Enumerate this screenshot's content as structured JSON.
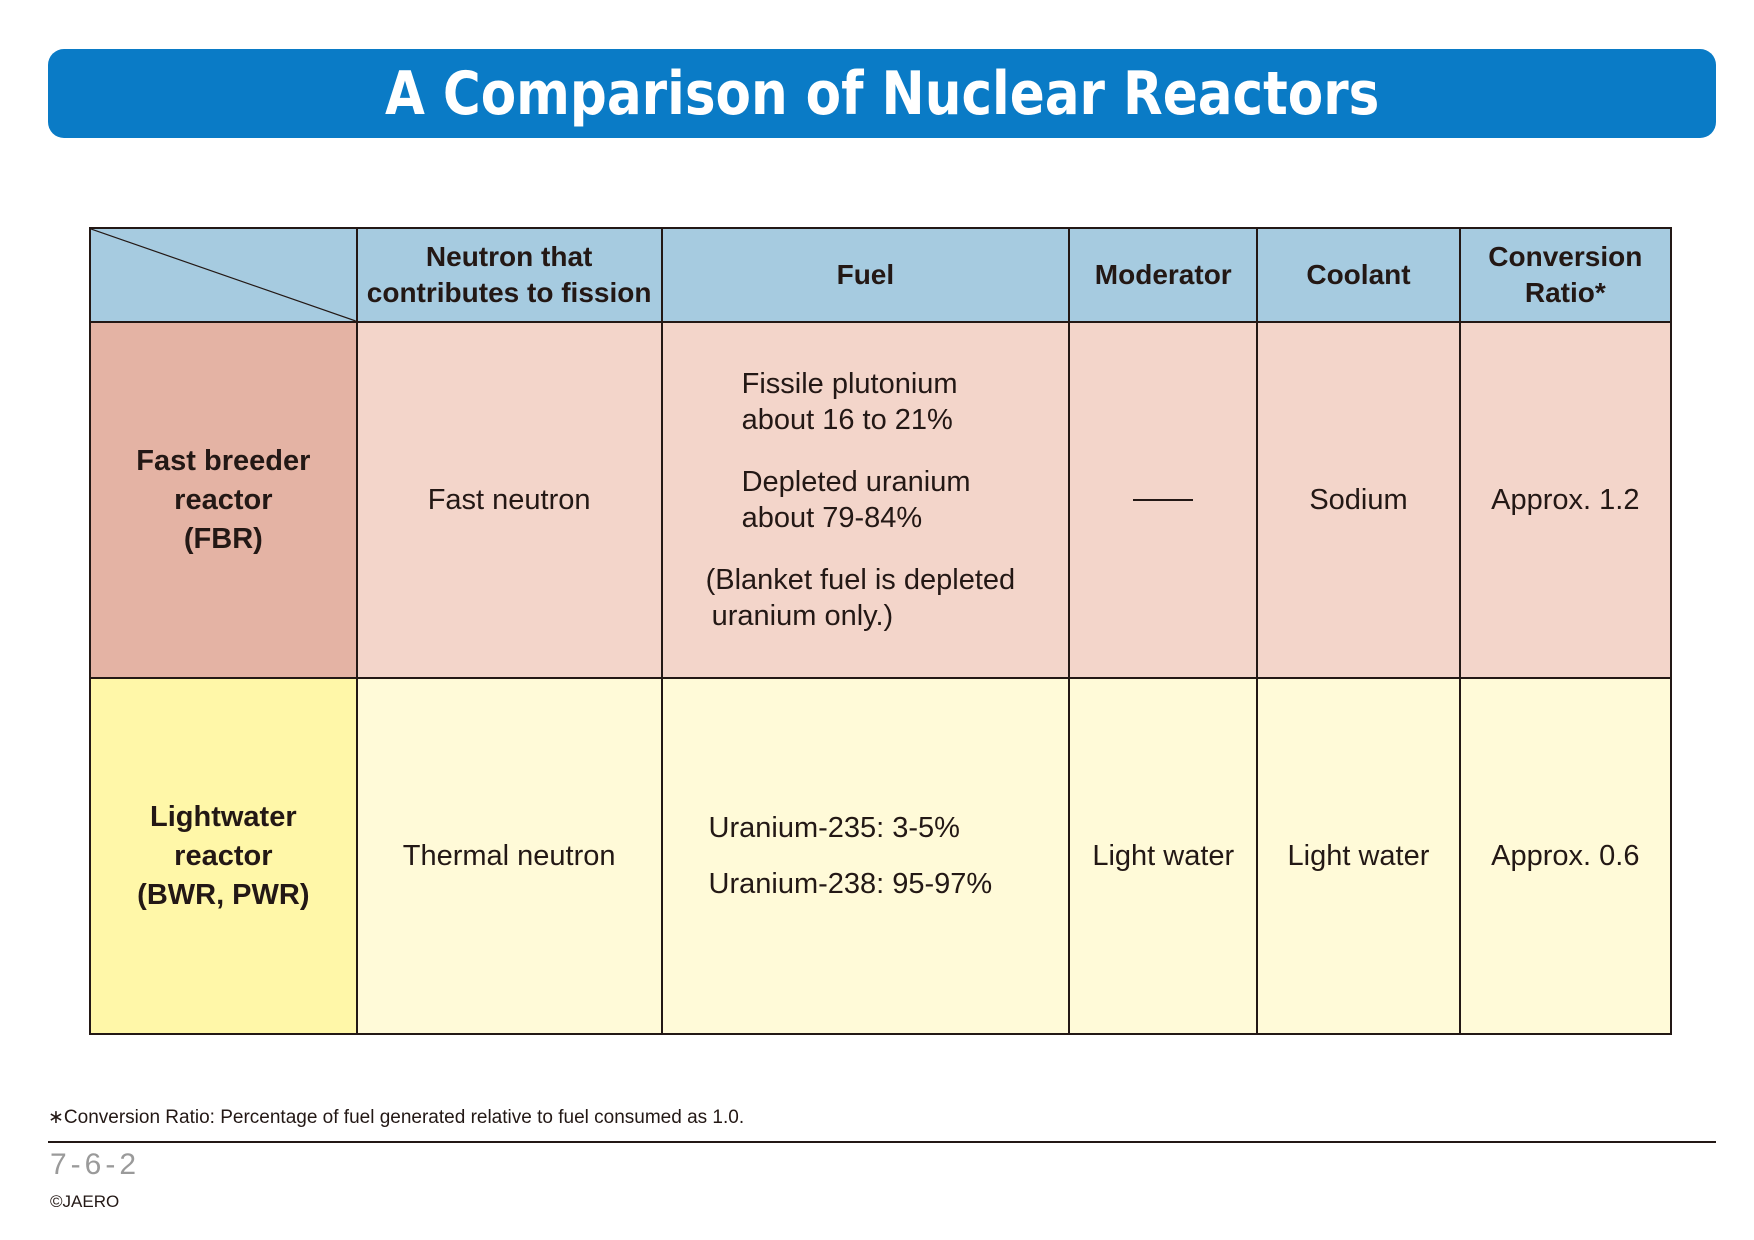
{
  "title": "A Comparison of Nuclear Reactors",
  "table": {
    "headers": [
      "Neutron that contributes to fission",
      "Fuel",
      "Moderator",
      "Coolant",
      "Conversion Ratio*"
    ],
    "header_lines": {
      "neutron_1": "Neutron that",
      "neutron_2": "contributes to fission",
      "fuel": "Fuel",
      "moderator": "Moderator",
      "coolant": "Coolant",
      "ratio_1": "Conversion",
      "ratio_2": "Ratio*"
    },
    "rows": [
      {
        "name_lines": [
          "Fast breeder",
          "reactor",
          "(FBR)"
        ],
        "neutron": "Fast neutron",
        "fuel_lines": [
          "Fissile plutonium",
          "about 16 to 21%",
          "Depleted uranium",
          "about 79-84%",
          "(Blanket fuel is depleted",
          "uranium only.)"
        ],
        "moderator": "—",
        "coolant": "Sodium",
        "ratio": "Approx. 1.2"
      },
      {
        "name_lines": [
          "Lightwater",
          "reactor",
          "(BWR, PWR)"
        ],
        "neutron": "Thermal neutron",
        "fuel_lines": [
          "Uranium-235: 3-5%",
          "Uranium-238: 95-97%"
        ],
        "moderator": "Light water",
        "coolant": "Light water",
        "ratio": "Approx. 0.6"
      }
    ]
  },
  "footnote": "∗Conversion Ratio: Percentage of fuel generated relative to fuel consumed as 1.0.",
  "page_number": "7-6-2",
  "copyright": "©JAERO",
  "colors": {
    "title_bar": "#0a7bc6",
    "header_bg": "#a6cbe0",
    "fbr_head": "#e4b3a4",
    "fbr_cells": "#f3d5ca",
    "lwr_head": "#fff7a8",
    "lwr_cells": "#fffad8"
  }
}
